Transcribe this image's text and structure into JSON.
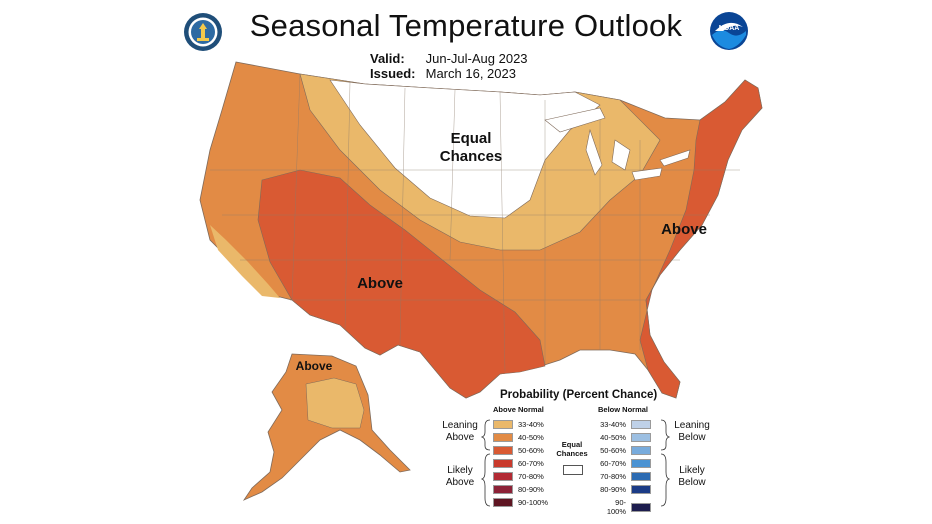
{
  "title": "Seasonal Temperature Outlook",
  "valid_label": "Valid:",
  "valid_value": "Jun-Jul-Aug 2023",
  "issued_label": "Issued:",
  "issued_value": "March 16, 2023",
  "logos": {
    "left": "commerce-seal-icon",
    "right": "noaa-logo-icon",
    "right_text": "NOAA"
  },
  "map_labels": {
    "equal_1": "Equal",
    "equal_2": "Chances",
    "above_sw": "Above",
    "above_ne": "Above",
    "above_ak": "Above"
  },
  "colors": {
    "lean_33_40": "#eab86a",
    "lean_40_50": "#e28b45",
    "likely_50_60": "#d95a33",
    "likely_60_70": "#c93a2c",
    "likely_70_80": "#b22a34",
    "likely_80_90": "#8c2237",
    "likely_90_100": "#5e1522",
    "below_33_40": "#bfd1e8",
    "below_40_50": "#9cbfe2",
    "below_50_60": "#78abdc",
    "below_60_70": "#4b93d3",
    "below_70_80": "#2c6bb2",
    "below_80_90": "#1b3b86",
    "below_90_100": "#1d1d4e",
    "equal": "#ffffff"
  },
  "legend": {
    "title": "Probability (Percent Chance)",
    "above_header": "Above Normal",
    "below_header": "Below Normal",
    "equal_label_1": "Equal",
    "equal_label_2": "Chances",
    "leaning_above_1": "Leaning",
    "leaning_above_2": "Above",
    "likely_above_1": "Likely",
    "likely_above_2": "Above",
    "leaning_below_1": "Leaning",
    "leaning_below_2": "Below",
    "likely_below_1": "Likely",
    "likely_below_2": "Below",
    "above_rows": [
      "33-40%",
      "40-50%",
      "50-60%",
      "60-70%",
      "70-80%",
      "80-90%",
      "90-100%"
    ],
    "below_rows": [
      "33-40%",
      "40-50%",
      "50-60%",
      "60-70%",
      "70-80%",
      "80-90%",
      "90-100%"
    ]
  }
}
